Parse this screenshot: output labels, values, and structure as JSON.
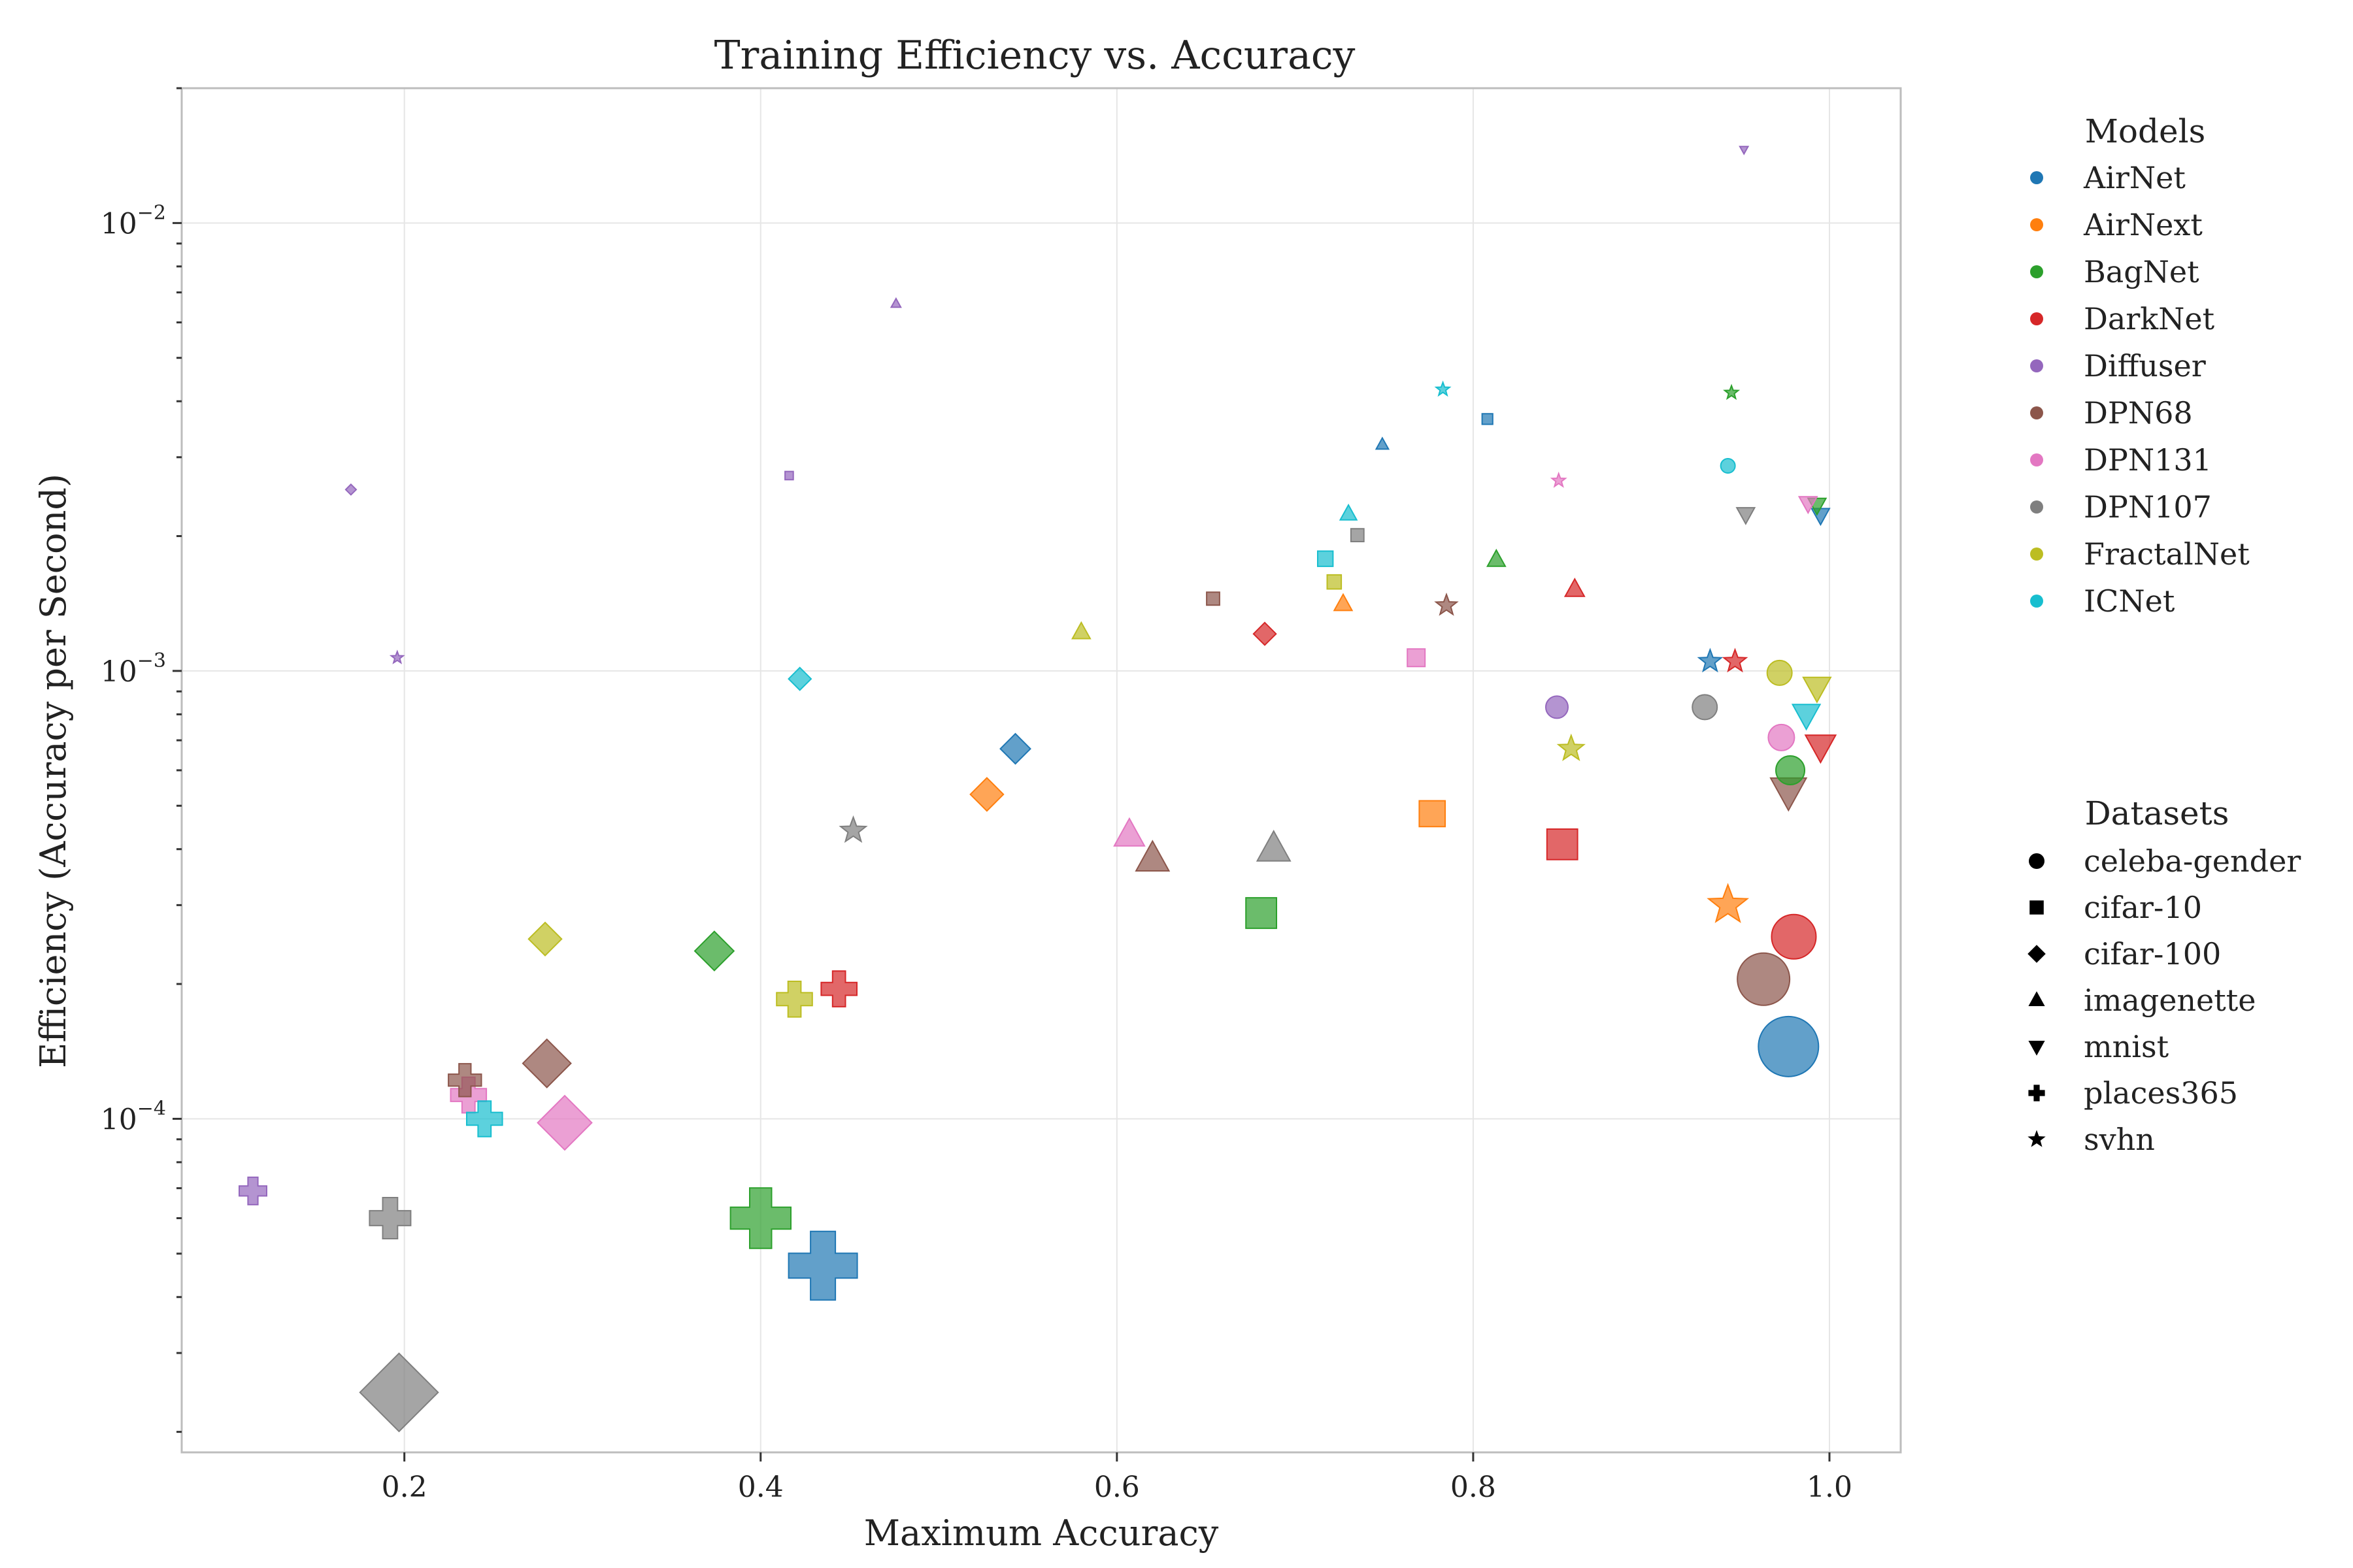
{
  "chart_data": {
    "type": "scatter",
    "title": "Training Efficiency vs. Accuracy",
    "xlabel": "Maximum Accuracy",
    "ylabel": "Efficiency (Accuracy per Second)",
    "xlim": [
      0.075,
      1.04
    ],
    "ylim": [
      1.8e-05,
      0.02
    ],
    "yscale": "log",
    "grid": true,
    "x_ticks": [
      0.2,
      0.4,
      0.6,
      0.8,
      1.0
    ],
    "x_tick_labels": [
      "0.2",
      "0.4",
      "0.6",
      "0.8",
      "1.0"
    ],
    "y_ticks": [
      0.0001,
      0.001,
      0.01
    ],
    "y_tick_labels": [
      [
        "10",
        "−4"
      ],
      [
        "10",
        "−3"
      ],
      [
        "10",
        "−2"
      ]
    ],
    "legend_models": {
      "title": "Models",
      "placement": "outside-right-top",
      "entries": [
        {
          "name": "AirNet",
          "color": "#1f77b4"
        },
        {
          "name": "AirNext",
          "color": "#ff7f0e"
        },
        {
          "name": "BagNet",
          "color": "#2ca02c"
        },
        {
          "name": "DarkNet",
          "color": "#d62728"
        },
        {
          "name": "Diffuser",
          "color": "#9467bd"
        },
        {
          "name": "DPN68",
          "color": "#8c564b"
        },
        {
          "name": "DPN131",
          "color": "#e377c2"
        },
        {
          "name": "DPN107",
          "color": "#7f7f7f"
        },
        {
          "name": "FractalNet",
          "color": "#bcbd22"
        },
        {
          "name": "ICNet",
          "color": "#17becf"
        }
      ]
    },
    "legend_datasets": {
      "title": "Datasets",
      "placement": "outside-right-middle",
      "entries": [
        {
          "name": "celeba-gender",
          "marker": "circle"
        },
        {
          "name": "cifar-10",
          "marker": "square"
        },
        {
          "name": "cifar-100",
          "marker": "diamond"
        },
        {
          "name": "imagenette",
          "marker": "triangle-up"
        },
        {
          "name": "mnist",
          "marker": "triangle-down"
        },
        {
          "name": "places365",
          "marker": "plus"
        },
        {
          "name": "svhn",
          "marker": "star"
        }
      ]
    },
    "points": [
      {
        "model": "AirNet",
        "dataset": "celeba-gender",
        "x": 0.977,
        "y": 0.000145,
        "size": 46
      },
      {
        "model": "AirNet",
        "dataset": "cifar-10",
        "x": 0.808,
        "y": 0.00365,
        "size": 9
      },
      {
        "model": "AirNet",
        "dataset": "cifar-100",
        "x": 0.543,
        "y": 0.00067,
        "size": 20
      },
      {
        "model": "AirNet",
        "dataset": "imagenette",
        "x": 0.749,
        "y": 0.0032,
        "size": 9
      },
      {
        "model": "AirNet",
        "dataset": "mnist",
        "x": 0.995,
        "y": 0.00223,
        "size": 13
      },
      {
        "model": "AirNet",
        "dataset": "places365",
        "x": 0.435,
        "y": 4.7e-05,
        "size": 50
      },
      {
        "model": "AirNet",
        "dataset": "svhn",
        "x": 0.933,
        "y": 0.00105,
        "size": 15
      },
      {
        "model": "AirNext",
        "dataset": "cifar-10",
        "x": 0.777,
        "y": 0.00048,
        "size": 22
      },
      {
        "model": "AirNext",
        "dataset": "cifar-100",
        "x": 0.527,
        "y": 0.00053,
        "size": 22
      },
      {
        "model": "AirNext",
        "dataset": "imagenette",
        "x": 0.727,
        "y": 0.00141,
        "size": 13
      },
      {
        "model": "AirNext",
        "dataset": "svhn",
        "x": 0.943,
        "y": 0.0003,
        "size": 26
      },
      {
        "model": "BagNet",
        "dataset": "celeba-gender",
        "x": 0.978,
        "y": 0.0006,
        "size": 22
      },
      {
        "model": "BagNet",
        "dataset": "cifar-10",
        "x": 0.681,
        "y": 0.000288,
        "size": 26
      },
      {
        "model": "BagNet",
        "dataset": "cifar-100",
        "x": 0.374,
        "y": 0.000237,
        "size": 26
      },
      {
        "model": "BagNet",
        "dataset": "imagenette",
        "x": 0.813,
        "y": 0.00177,
        "size": 13
      },
      {
        "model": "BagNet",
        "dataset": "mnist",
        "x": 0.993,
        "y": 0.00235,
        "size": 13
      },
      {
        "model": "BagNet",
        "dataset": "places365",
        "x": 0.4,
        "y": 6e-05,
        "size": 44
      },
      {
        "model": "BagNet",
        "dataset": "svhn",
        "x": 0.945,
        "y": 0.00418,
        "size": 9
      },
      {
        "model": "DarkNet",
        "dataset": "celeba-gender",
        "x": 0.98,
        "y": 0.000255,
        "size": 34
      },
      {
        "model": "DarkNet",
        "dataset": "cifar-10",
        "x": 0.85,
        "y": 0.00041,
        "size": 26
      },
      {
        "model": "DarkNet",
        "dataset": "cifar-100",
        "x": 0.683,
        "y": 0.00121,
        "size": 15
      },
      {
        "model": "DarkNet",
        "dataset": "imagenette",
        "x": 0.857,
        "y": 0.00152,
        "size": 14
      },
      {
        "model": "DarkNet",
        "dataset": "mnist",
        "x": 0.995,
        "y": 0.00068,
        "size": 22
      },
      {
        "model": "DarkNet",
        "dataset": "places365",
        "x": 0.444,
        "y": 0.000195,
        "size": 26
      },
      {
        "model": "DarkNet",
        "dataset": "svhn",
        "x": 0.947,
        "y": 0.00105,
        "size": 15
      },
      {
        "model": "Diffuser",
        "dataset": "celeba-gender",
        "x": 0.847,
        "y": 0.00083,
        "size": 17
      },
      {
        "model": "Diffuser",
        "dataset": "cifar-10",
        "x": 0.416,
        "y": 0.00273,
        "size": 7
      },
      {
        "model": "Diffuser",
        "dataset": "cifar-100",
        "x": 0.17,
        "y": 0.00254,
        "size": 7
      },
      {
        "model": "Diffuser",
        "dataset": "imagenette",
        "x": 0.476,
        "y": 0.0066,
        "size": 7
      },
      {
        "model": "Diffuser",
        "dataset": "mnist",
        "x": 0.952,
        "y": 0.0146,
        "size": 6
      },
      {
        "model": "Diffuser",
        "dataset": "places365",
        "x": 0.115,
        "y": 6.9e-05,
        "size": 20
      },
      {
        "model": "Diffuser",
        "dataset": "svhn",
        "x": 0.196,
        "y": 0.00107,
        "size": 8
      },
      {
        "model": "DPN68",
        "dataset": "celeba-gender",
        "x": 0.963,
        "y": 0.000205,
        "size": 40
      },
      {
        "model": "DPN68",
        "dataset": "cifar-10",
        "x": 0.654,
        "y": 0.00145,
        "size": 11
      },
      {
        "model": "DPN68",
        "dataset": "cifar-100",
        "x": 0.28,
        "y": 0.000133,
        "size": 32
      },
      {
        "model": "DPN68",
        "dataset": "imagenette",
        "x": 0.62,
        "y": 0.00038,
        "size": 24
      },
      {
        "model": "DPN68",
        "dataset": "mnist",
        "x": 0.977,
        "y": 0.00054,
        "size": 26
      },
      {
        "model": "DPN68",
        "dataset": "places365",
        "x": 0.234,
        "y": 0.000122,
        "size": 24
      },
      {
        "model": "DPN68",
        "dataset": "svhn",
        "x": 0.785,
        "y": 0.0014,
        "size": 14
      },
      {
        "model": "DPN131",
        "dataset": "celeba-gender",
        "x": 0.973,
        "y": 0.00071,
        "size": 20
      },
      {
        "model": "DPN131",
        "dataset": "cifar-10",
        "x": 0.768,
        "y": 0.00107,
        "size": 15
      },
      {
        "model": "DPN131",
        "dataset": "cifar-100",
        "x": 0.29,
        "y": 9.8e-05,
        "size": 36
      },
      {
        "model": "DPN131",
        "dataset": "imagenette",
        "x": 0.607,
        "y": 0.00043,
        "size": 22
      },
      {
        "model": "DPN131",
        "dataset": "mnist",
        "x": 0.988,
        "y": 0.00237,
        "size": 13
      },
      {
        "model": "DPN131",
        "dataset": "places365",
        "x": 0.236,
        "y": 0.000113,
        "size": 26
      },
      {
        "model": "DPN131",
        "dataset": "svhn",
        "x": 0.848,
        "y": 0.00266,
        "size": 9
      },
      {
        "model": "DPN107",
        "dataset": "celeba-gender",
        "x": 0.93,
        "y": 0.00083,
        "size": 19
      },
      {
        "model": "DPN107",
        "dataset": "cifar-10",
        "x": 0.735,
        "y": 0.00201,
        "size": 11
      },
      {
        "model": "DPN107",
        "dataset": "cifar-100",
        "x": 0.197,
        "y": 2.45e-05,
        "size": 52
      },
      {
        "model": "DPN107",
        "dataset": "imagenette",
        "x": 0.688,
        "y": 0.0004,
        "size": 24
      },
      {
        "model": "DPN107",
        "dataset": "mnist",
        "x": 0.953,
        "y": 0.00224,
        "size": 13
      },
      {
        "model": "DPN107",
        "dataset": "places365",
        "x": 0.192,
        "y": 6e-05,
        "size": 30
      },
      {
        "model": "DPN107",
        "dataset": "svhn",
        "x": 0.452,
        "y": 0.00044,
        "size": 17
      },
      {
        "model": "FractalNet",
        "dataset": "celeba-gender",
        "x": 0.972,
        "y": 0.00099,
        "size": 19
      },
      {
        "model": "FractalNet",
        "dataset": "cifar-10",
        "x": 0.722,
        "y": 0.00158,
        "size": 12
      },
      {
        "model": "FractalNet",
        "dataset": "cifar-100",
        "x": 0.279,
        "y": 0.000252,
        "size": 22
      },
      {
        "model": "FractalNet",
        "dataset": "imagenette",
        "x": 0.58,
        "y": 0.00122,
        "size": 13
      },
      {
        "model": "FractalNet",
        "dataset": "mnist",
        "x": 0.993,
        "y": 0.00092,
        "size": 20
      },
      {
        "model": "FractalNet",
        "dataset": "places365",
        "x": 0.419,
        "y": 0.000185,
        "size": 26
      },
      {
        "model": "FractalNet",
        "dataset": "svhn",
        "x": 0.855,
        "y": 0.00067,
        "size": 17
      },
      {
        "model": "ICNet",
        "dataset": "celeba-gender",
        "x": 0.943,
        "y": 0.00287,
        "size": 11
      },
      {
        "model": "ICNet",
        "dataset": "cifar-10",
        "x": 0.717,
        "y": 0.00178,
        "size": 13
      },
      {
        "model": "ICNet",
        "dataset": "cifar-100",
        "x": 0.422,
        "y": 0.00096,
        "size": 15
      },
      {
        "model": "ICNet",
        "dataset": "imagenette",
        "x": 0.73,
        "y": 0.00224,
        "size": 12
      },
      {
        "model": "ICNet",
        "dataset": "mnist",
        "x": 0.987,
        "y": 0.0008,
        "size": 20
      },
      {
        "model": "ICNet",
        "dataset": "places365",
        "x": 0.245,
        "y": 0.0001,
        "size": 26
      },
      {
        "model": "ICNet",
        "dataset": "svhn",
        "x": 0.783,
        "y": 0.00425,
        "size": 9
      }
    ]
  }
}
